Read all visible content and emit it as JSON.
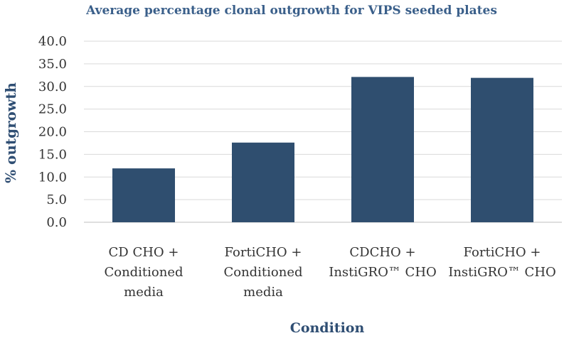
{
  "chart_data": {
    "type": "bar",
    "title": "Average percentage clonal outgrowth for VIPS seeded plates",
    "xlabel": "Condition",
    "ylabel": "% outgrowth",
    "ylim": [
      0,
      40
    ],
    "yticks": [
      "0.0",
      "5.0",
      "10.0",
      "15.0",
      "20.0",
      "25.0",
      "30.0",
      "35.0",
      "40.0"
    ],
    "categories": [
      [
        "CD CHO +",
        "Conditioned",
        "media"
      ],
      [
        "FortiCHO +",
        "Conditioned",
        "media"
      ],
      [
        "CDCHO +",
        "InstiGRO™ CHO"
      ],
      [
        "FortiCHO +",
        "InstiGRO™ CHO"
      ]
    ],
    "values": [
      11.9,
      17.6,
      32.1,
      31.9
    ],
    "bar_color": "#2f4e6f",
    "grid": true
  }
}
